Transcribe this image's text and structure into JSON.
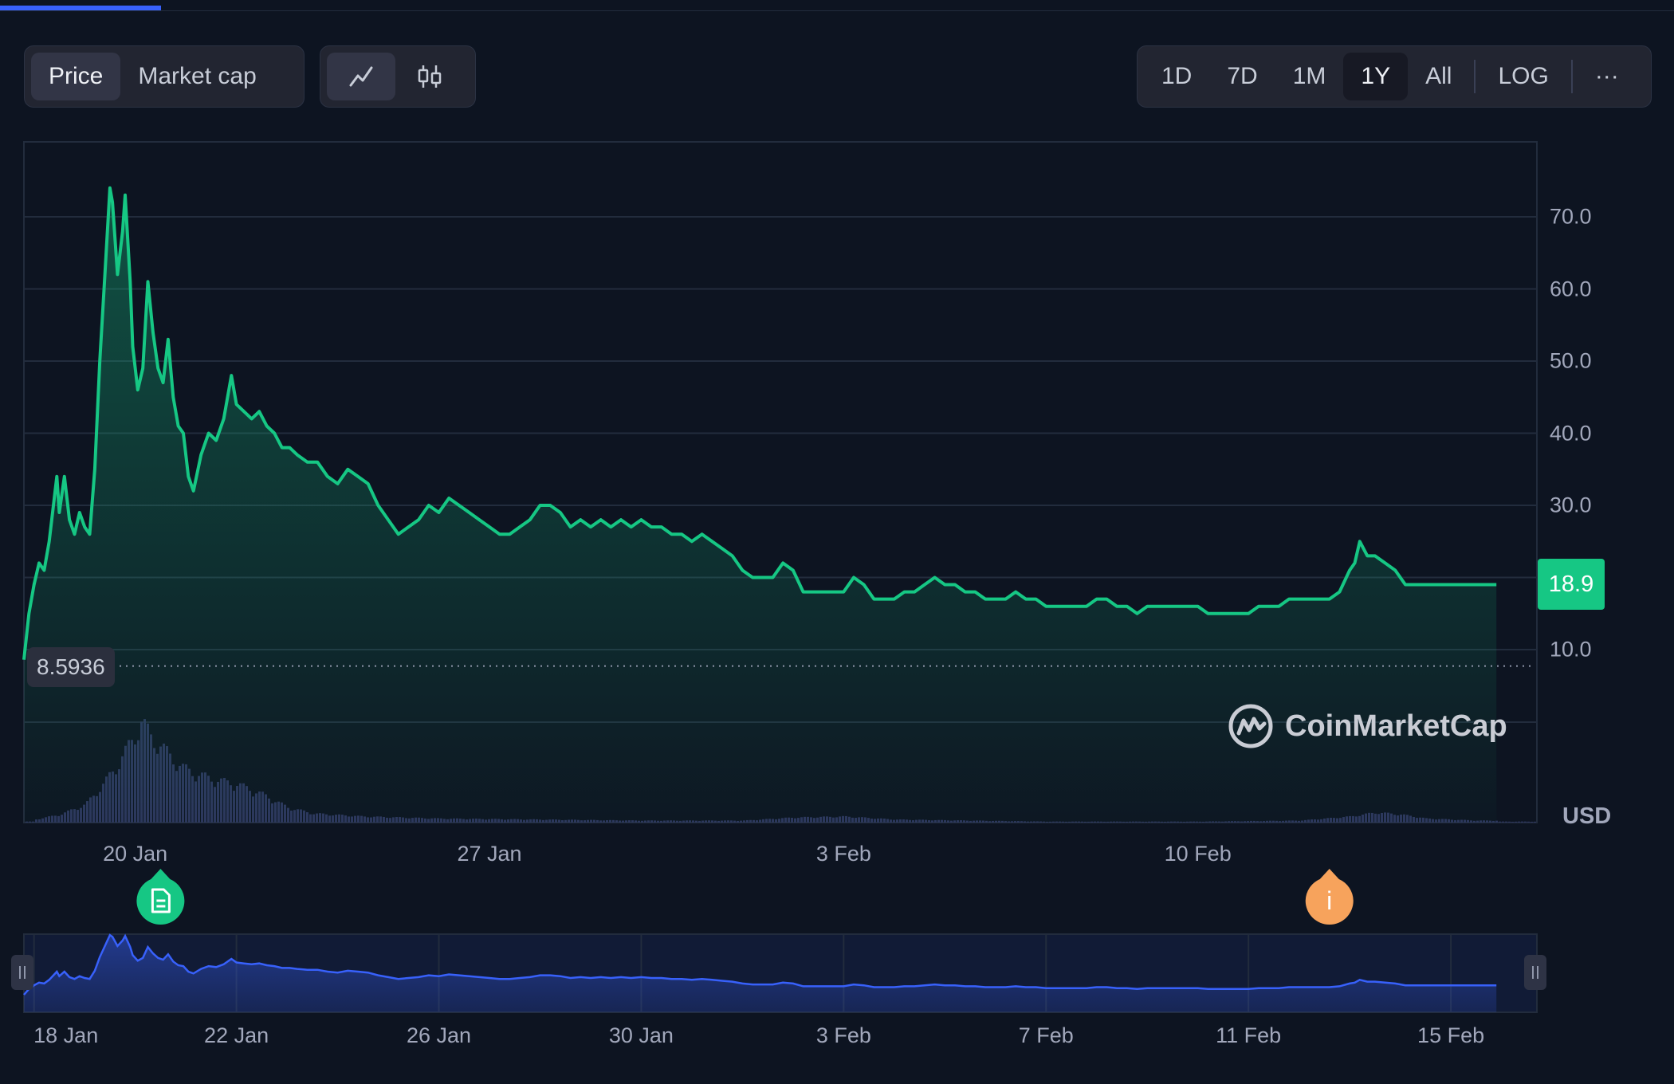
{
  "toolbar": {
    "metric_tabs": [
      {
        "label": "Price",
        "selected": true
      },
      {
        "label": "Market cap",
        "selected": false
      }
    ],
    "chart_type_icons": [
      "line-chart-icon",
      "candlestick-icon"
    ],
    "ranges": [
      {
        "label": "1D",
        "selected": false
      },
      {
        "label": "7D",
        "selected": false
      },
      {
        "label": "1M",
        "selected": false
      },
      {
        "label": "1Y",
        "selected": true
      },
      {
        "label": "All",
        "selected": false
      }
    ],
    "scale_label": "LOG",
    "more_label": "···"
  },
  "chart_data": {
    "type": "area",
    "currency_label": "USD",
    "current_price_label": "18.9",
    "low_label": "8.5936",
    "ylim": [
      0,
      80
    ],
    "yticks": [
      10,
      20,
      30,
      40,
      50,
      60,
      70
    ],
    "ytick_labels": [
      "10.0",
      "",
      "30.0",
      "40.0",
      "50.0",
      "60.0",
      "70.0"
    ],
    "x_tick_labels": [
      "20 Jan",
      "27 Jan",
      "3 Feb",
      "10 Feb"
    ],
    "x_tick_days": [
      2,
      9,
      16,
      23
    ],
    "x_range_days": [
      -0.2,
      29.7
    ],
    "line_color": "#16c784",
    "navigator_color": "#3861fb",
    "volume_color": "#2c355c",
    "series": [
      {
        "values_day_price": [
          [
            -0.2,
            8.6
          ],
          [
            -0.1,
            15
          ],
          [
            0,
            19
          ],
          [
            0.1,
            22
          ],
          [
            0.2,
            21
          ],
          [
            0.3,
            25
          ],
          [
            0.4,
            31
          ],
          [
            0.45,
            34
          ],
          [
            0.5,
            29
          ],
          [
            0.6,
            34
          ],
          [
            0.7,
            28
          ],
          [
            0.8,
            26
          ],
          [
            0.9,
            29
          ],
          [
            1.0,
            27
          ],
          [
            1.1,
            26
          ],
          [
            1.2,
            35
          ],
          [
            1.3,
            50
          ],
          [
            1.4,
            62
          ],
          [
            1.5,
            74
          ],
          [
            1.55,
            72
          ],
          [
            1.65,
            62
          ],
          [
            1.75,
            68
          ],
          [
            1.8,
            73
          ],
          [
            1.9,
            61
          ],
          [
            1.95,
            52
          ],
          [
            2.05,
            46
          ],
          [
            2.15,
            49
          ],
          [
            2.25,
            61
          ],
          [
            2.35,
            54
          ],
          [
            2.45,
            49
          ],
          [
            2.55,
            47
          ],
          [
            2.65,
            53
          ],
          [
            2.75,
            45
          ],
          [
            2.85,
            41
          ],
          [
            2.95,
            40
          ],
          [
            3.05,
            34
          ],
          [
            3.15,
            32
          ],
          [
            3.3,
            37
          ],
          [
            3.45,
            40
          ],
          [
            3.6,
            39
          ],
          [
            3.75,
            42
          ],
          [
            3.9,
            48
          ],
          [
            4.0,
            44
          ],
          [
            4.15,
            43
          ],
          [
            4.3,
            42
          ],
          [
            4.45,
            43
          ],
          [
            4.6,
            41
          ],
          [
            4.75,
            40
          ],
          [
            4.9,
            38
          ],
          [
            5.05,
            38
          ],
          [
            5.2,
            37
          ],
          [
            5.4,
            36
          ],
          [
            5.6,
            36
          ],
          [
            5.8,
            34
          ],
          [
            6.0,
            33
          ],
          [
            6.2,
            35
          ],
          [
            6.4,
            34
          ],
          [
            6.6,
            33
          ],
          [
            6.8,
            30
          ],
          [
            7.0,
            28
          ],
          [
            7.2,
            26
          ],
          [
            7.4,
            27
          ],
          [
            7.6,
            28
          ],
          [
            7.8,
            30
          ],
          [
            8.0,
            29
          ],
          [
            8.2,
            31
          ],
          [
            8.4,
            30
          ],
          [
            8.6,
            29
          ],
          [
            8.8,
            28
          ],
          [
            9.0,
            27
          ],
          [
            9.2,
            26
          ],
          [
            9.4,
            26
          ],
          [
            9.6,
            27
          ],
          [
            9.8,
            28
          ],
          [
            10.0,
            30
          ],
          [
            10.2,
            30
          ],
          [
            10.4,
            29
          ],
          [
            10.6,
            27
          ],
          [
            10.8,
            28
          ],
          [
            11.0,
            27
          ],
          [
            11.2,
            28
          ],
          [
            11.4,
            27
          ],
          [
            11.6,
            28
          ],
          [
            11.8,
            27
          ],
          [
            12.0,
            28
          ],
          [
            12.2,
            27
          ],
          [
            12.4,
            27
          ],
          [
            12.6,
            26
          ],
          [
            12.8,
            26
          ],
          [
            13.0,
            25
          ],
          [
            13.2,
            26
          ],
          [
            13.4,
            25
          ],
          [
            13.6,
            24
          ],
          [
            13.8,
            23
          ],
          [
            14.0,
            21
          ],
          [
            14.2,
            20
          ],
          [
            14.4,
            20
          ],
          [
            14.6,
            20
          ],
          [
            14.8,
            22
          ],
          [
            15.0,
            21
          ],
          [
            15.2,
            18
          ],
          [
            15.4,
            18
          ],
          [
            15.6,
            18
          ],
          [
            15.8,
            18
          ],
          [
            16.0,
            18
          ],
          [
            16.2,
            20
          ],
          [
            16.4,
            19
          ],
          [
            16.6,
            17
          ],
          [
            16.8,
            17
          ],
          [
            17.0,
            17
          ],
          [
            17.2,
            18
          ],
          [
            17.4,
            18
          ],
          [
            17.6,
            19
          ],
          [
            17.8,
            20
          ],
          [
            18.0,
            19
          ],
          [
            18.2,
            19
          ],
          [
            18.4,
            18
          ],
          [
            18.6,
            18
          ],
          [
            18.8,
            17
          ],
          [
            19.0,
            17
          ],
          [
            19.2,
            17
          ],
          [
            19.4,
            18
          ],
          [
            19.6,
            17
          ],
          [
            19.8,
            17
          ],
          [
            20.0,
            16
          ],
          [
            20.2,
            16
          ],
          [
            20.4,
            16
          ],
          [
            20.6,
            16
          ],
          [
            20.8,
            16
          ],
          [
            21.0,
            17
          ],
          [
            21.2,
            17
          ],
          [
            21.4,
            16
          ],
          [
            21.6,
            16
          ],
          [
            21.8,
            15
          ],
          [
            22.0,
            16
          ],
          [
            22.2,
            16
          ],
          [
            22.4,
            16
          ],
          [
            22.6,
            16
          ],
          [
            22.8,
            16
          ],
          [
            23.0,
            16
          ],
          [
            23.2,
            15
          ],
          [
            23.4,
            15
          ],
          [
            23.6,
            15
          ],
          [
            23.8,
            15
          ],
          [
            24.0,
            15
          ],
          [
            24.2,
            16
          ],
          [
            24.4,
            16
          ],
          [
            24.6,
            16
          ],
          [
            24.8,
            17
          ],
          [
            25.0,
            17
          ],
          [
            25.2,
            17
          ],
          [
            25.4,
            17
          ],
          [
            25.6,
            17
          ],
          [
            25.8,
            18
          ],
          [
            26.0,
            21
          ],
          [
            26.1,
            22
          ],
          [
            26.2,
            25
          ],
          [
            26.35,
            23
          ],
          [
            26.5,
            23
          ],
          [
            26.7,
            22
          ],
          [
            26.9,
            21
          ],
          [
            27.1,
            19
          ],
          [
            27.3,
            19
          ],
          [
            27.5,
            19
          ],
          [
            27.7,
            19
          ],
          [
            27.9,
            19
          ],
          [
            28.1,
            19
          ],
          [
            28.3,
            19
          ],
          [
            28.5,
            19
          ],
          [
            28.7,
            19
          ],
          [
            28.9,
            19
          ]
        ]
      }
    ],
    "volume_day_height": [
      [
        0,
        0.03
      ],
      [
        0.5,
        0.08
      ],
      [
        1.0,
        0.18
      ],
      [
        1.3,
        0.35
      ],
      [
        1.6,
        0.55
      ],
      [
        1.9,
        0.8
      ],
      [
        2.1,
        1.0
      ],
      [
        2.3,
        0.85
      ],
      [
        2.6,
        0.7
      ],
      [
        2.9,
        0.55
      ],
      [
        3.2,
        0.48
      ],
      [
        3.6,
        0.42
      ],
      [
        4.0,
        0.38
      ],
      [
        4.5,
        0.28
      ],
      [
        5.0,
        0.15
      ],
      [
        5.5,
        0.09
      ],
      [
        6.5,
        0.06
      ],
      [
        8,
        0.04
      ],
      [
        10,
        0.03
      ],
      [
        12,
        0.02
      ],
      [
        14,
        0.02
      ],
      [
        15,
        0.05
      ],
      [
        16,
        0.06
      ],
      [
        17,
        0.03
      ],
      [
        20,
        0.01
      ],
      [
        23,
        0.01
      ],
      [
        25,
        0.02
      ],
      [
        26,
        0.06
      ],
      [
        26.5,
        0.1
      ],
      [
        27,
        0.08
      ],
      [
        27.5,
        0.04
      ],
      [
        28.5,
        0.02
      ],
      [
        28.9,
        0.02
      ]
    ],
    "navigator": {
      "x_tick_labels": [
        "18 Jan",
        "22 Jan",
        "26 Jan",
        "30 Jan",
        "3 Feb",
        "7 Feb",
        "11 Feb",
        "15 Feb"
      ],
      "x_tick_days": [
        0,
        4,
        8,
        12,
        16,
        20,
        24,
        28
      ]
    },
    "events": [
      {
        "day": 2.5,
        "icon": "document-icon",
        "color": "#16c784"
      },
      {
        "day": 25.6,
        "icon": "info-icon",
        "color": "#f7a35c",
        "label": "i"
      }
    ]
  },
  "watermark": "CoinMarketCap"
}
